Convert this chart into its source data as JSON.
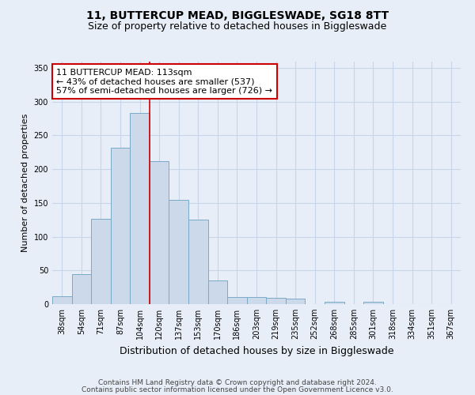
{
  "title": "11, BUTTERCUP MEAD, BIGGLESWADE, SG18 8TT",
  "subtitle": "Size of property relative to detached houses in Biggleswade",
  "xlabel": "Distribution of detached houses by size in Biggleswade",
  "ylabel": "Number of detached properties",
  "categories": [
    "38sqm",
    "54sqm",
    "71sqm",
    "87sqm",
    "104sqm",
    "120sqm",
    "137sqm",
    "153sqm",
    "170sqm",
    "186sqm",
    "203sqm",
    "219sqm",
    "235sqm",
    "252sqm",
    "268sqm",
    "285sqm",
    "301sqm",
    "318sqm",
    "334sqm",
    "351sqm",
    "367sqm"
  ],
  "values": [
    12,
    45,
    127,
    232,
    283,
    212,
    155,
    125,
    35,
    11,
    10,
    9,
    8,
    0,
    4,
    0,
    3,
    0,
    0,
    0,
    0
  ],
  "bar_color": "#ccd9ea",
  "bar_edge_color": "#7aaac8",
  "grid_color": "#c8d4e8",
  "background_color": "#e8eef8",
  "vline_x": 4.5,
  "vline_color": "#cc0000",
  "annotation_text": "11 BUTTERCUP MEAD: 113sqm\n← 43% of detached houses are smaller (537)\n57% of semi-detached houses are larger (726) →",
  "annotation_box_color": "#ffffff",
  "annotation_box_edge": "#cc0000",
  "ylim": [
    0,
    360
  ],
  "yticks": [
    0,
    50,
    100,
    150,
    200,
    250,
    300,
    350
  ],
  "footer1": "Contains HM Land Registry data © Crown copyright and database right 2024.",
  "footer2": "Contains public sector information licensed under the Open Government Licence v3.0.",
  "title_fontsize": 10,
  "subtitle_fontsize": 9,
  "xlabel_fontsize": 9,
  "ylabel_fontsize": 8,
  "tick_fontsize": 7,
  "footer_fontsize": 6.5,
  "annotation_fontsize": 8
}
